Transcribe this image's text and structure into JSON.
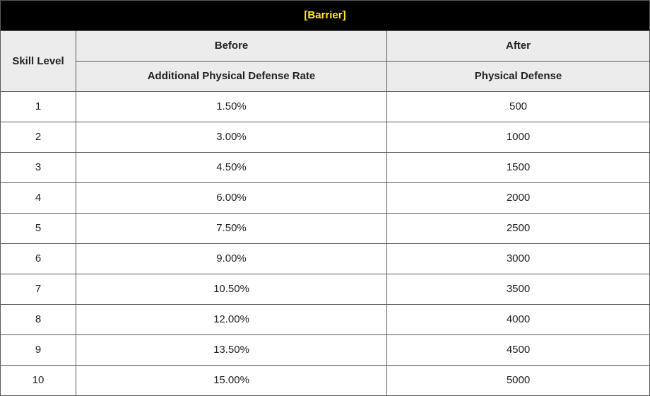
{
  "table": {
    "title": "[Barrier]",
    "headers": {
      "skill_level": "Skill Level",
      "before": "Before",
      "after": "After",
      "before_sub": "Additional Physical Defense Rate",
      "after_sub": "Physical Defense"
    },
    "rows": [
      {
        "level": "1",
        "before": "1.50%",
        "after": "500"
      },
      {
        "level": "2",
        "before": "3.00%",
        "after": "1000"
      },
      {
        "level": "3",
        "before": "4.50%",
        "after": "1500"
      },
      {
        "level": "4",
        "before": "6.00%",
        "after": "2000"
      },
      {
        "level": "5",
        "before": "7.50%",
        "after": "2500"
      },
      {
        "level": "6",
        "before": "9.00%",
        "after": "3000"
      },
      {
        "level": "7",
        "before": "10.50%",
        "after": "3500"
      },
      {
        "level": "8",
        "before": "12.00%",
        "after": "4000"
      },
      {
        "level": "9",
        "before": "13.50%",
        "after": "4500"
      },
      {
        "level": "10",
        "before": "15.00%",
        "after": "5000"
      }
    ]
  },
  "colors": {
    "title_background": "#000000",
    "title_text": "#ffee00",
    "header_background": "#ececec",
    "border": "#5a5a5a"
  }
}
